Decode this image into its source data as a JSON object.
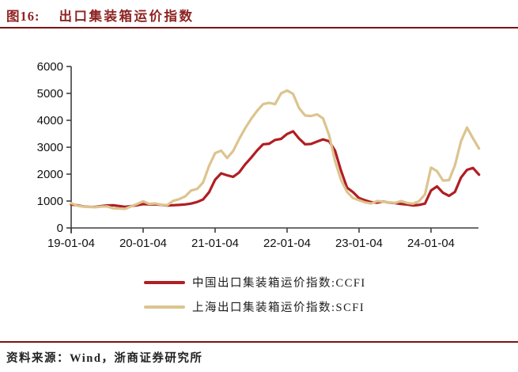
{
  "figure": {
    "number": "图16:",
    "title": "出口集装箱运价指数"
  },
  "source_note": "资料来源：Wind，浙商证券研究所",
  "colors": {
    "title_accent": "#8E2423",
    "rule": "#7A1416",
    "axis": "#3F3F3F",
    "tick_text": "#111111",
    "ccfi_red": "#B01E23",
    "scfi_tan": "#DCC48E"
  },
  "chart_data": {
    "type": "line",
    "title": "出口集装箱运价指数",
    "x_start": "2019-01",
    "x_end": "2024-09",
    "x_sampling": "monthly",
    "x_tick_labels": [
      "19-01-04",
      "20-01-04",
      "21-01-04",
      "22-01-04",
      "23-01-04",
      "24-01-04"
    ],
    "ylim": [
      0,
      6000
    ],
    "ytick_step": 1000,
    "grid": false,
    "legend_position": "bottom",
    "series": [
      {
        "name": "中国出口集装箱运价指数:CCFI",
        "color": "#B01E23",
        "values": [
          870,
          845,
          800,
          785,
          780,
          815,
          835,
          845,
          815,
          785,
          815,
          845,
          885,
          875,
          880,
          855,
          835,
          845,
          855,
          875,
          905,
          965,
          1060,
          1330,
          1790,
          2030,
          1955,
          1900,
          2060,
          2360,
          2610,
          2880,
          3110,
          3130,
          3270,
          3310,
          3490,
          3590,
          3320,
          3110,
          3120,
          3210,
          3290,
          3220,
          2870,
          2120,
          1500,
          1330,
          1110,
          1030,
          960,
          940,
          985,
          945,
          920,
          890,
          870,
          835,
          855,
          905,
          1390,
          1545,
          1305,
          1195,
          1340,
          1870,
          2160,
          2230,
          1980
        ]
      },
      {
        "name": "上海出口集装箱运价指数:SCFI",
        "color": "#DCC48E",
        "values": [
          920,
          830,
          790,
          780,
          770,
          795,
          800,
          730,
          720,
          710,
          805,
          890,
          990,
          895,
          910,
          860,
          845,
          1005,
          1070,
          1170,
          1390,
          1450,
          1690,
          2310,
          2780,
          2875,
          2600,
          2860,
          3300,
          3700,
          4050,
          4350,
          4600,
          4650,
          4600,
          5000,
          5110,
          4980,
          4450,
          4180,
          4160,
          4220,
          4070,
          3450,
          2480,
          1780,
          1340,
          1110,
          1030,
          950,
          910,
          1000,
          980,
          950,
          930,
          1000,
          930,
          900,
          990,
          1250,
          2240,
          2110,
          1760,
          1780,
          2330,
          3220,
          3730,
          3330,
          2950
        ]
      }
    ]
  }
}
